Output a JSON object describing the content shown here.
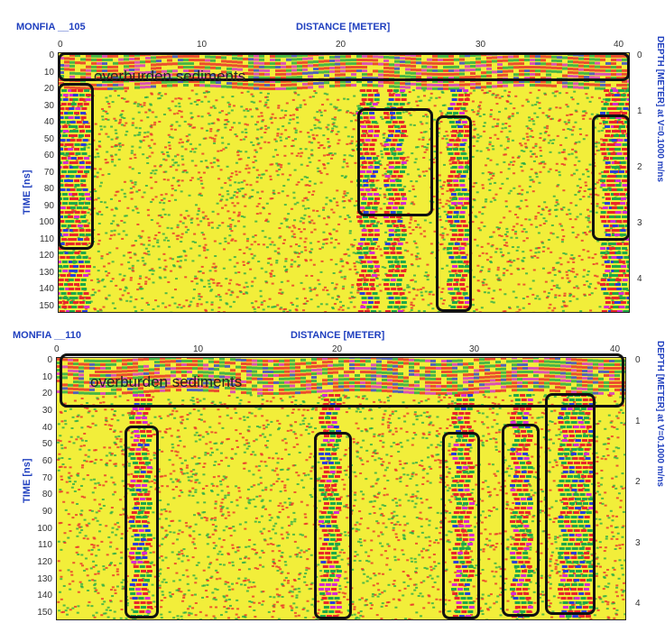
{
  "panels": [
    {
      "title": "MONFIA __105",
      "x_axis_title": "DISTANCE [METER]",
      "y_axis_title": "TIME [ns]",
      "right_axis_title": "DEPTH [METER] at V=0.1000 m/ns",
      "x_ticks": [
        "0",
        "10",
        "20",
        "30",
        "40"
      ],
      "y_ticks": [
        "0",
        "10",
        "20",
        "30",
        "40",
        "50",
        "60",
        "70",
        "80",
        "90",
        "100",
        "110",
        "120",
        "130",
        "140",
        "150"
      ],
      "right_ticks": [
        "0",
        "1",
        "2",
        "3",
        "4"
      ],
      "annotation_label": "overburden sediments"
    },
    {
      "title": "MONFIA __110",
      "x_axis_title": "DISTANCE [METER]",
      "y_axis_title": "TIME [ns]",
      "right_axis_title": "DEPTH [METER] at V=0.1000 m/ns",
      "x_ticks": [
        "0",
        "10",
        "20",
        "30",
        "40"
      ],
      "y_ticks": [
        "0",
        "10",
        "20",
        "30",
        "40",
        "50",
        "60",
        "70",
        "80",
        "90",
        "100",
        "110",
        "120",
        "130",
        "140",
        "150"
      ],
      "right_ticks": [
        "0",
        "1",
        "2",
        "3",
        "4"
      ],
      "annotation_label": "overburden sediments"
    }
  ],
  "colors": {
    "background": "#f2ee3a",
    "red": "#e8262b",
    "green": "#1ea84a",
    "magenta": "#d62ad0",
    "blue": "#2a3fd8",
    "axis_label": "#1f3fbf"
  }
}
